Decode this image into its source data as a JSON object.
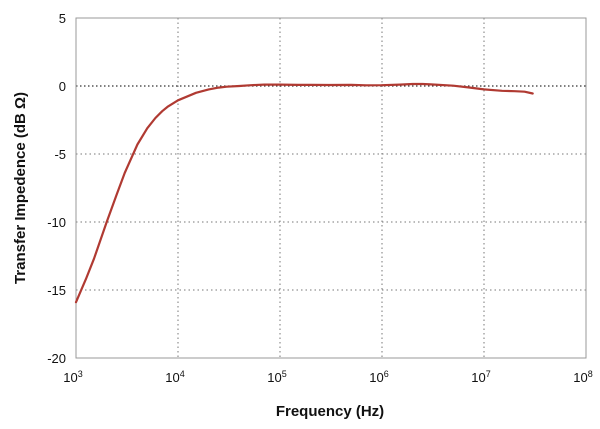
{
  "chart_data": {
    "type": "line",
    "title": "",
    "xlabel": "Frequency (Hz)",
    "ylabel": "Transfer Impedence (dB Ω)",
    "x_scale": "log",
    "xlim": [
      1000,
      100000000
    ],
    "ylim": [
      -20,
      5
    ],
    "x_ticks": [
      {
        "value": 1000,
        "base": "10",
        "exp": "3"
      },
      {
        "value": 10000,
        "base": "10",
        "exp": "4"
      },
      {
        "value": 100000,
        "base": "10",
        "exp": "5"
      },
      {
        "value": 1000000,
        "base": "10",
        "exp": "6"
      },
      {
        "value": 10000000,
        "base": "10",
        "exp": "7"
      },
      {
        "value": 100000000,
        "base": "10",
        "exp": "8"
      }
    ],
    "y_ticks": [
      5,
      0,
      -5,
      -10,
      -15,
      -20
    ],
    "grid": true,
    "grid_style": "dotted",
    "legend": "none",
    "series": [
      {
        "color": "#b03a32",
        "x": [
          1000,
          1250,
          1500,
          2000,
          2500,
          3000,
          4000,
          5000,
          6000,
          7000,
          8000,
          10000,
          12500,
          15000,
          20000,
          25000,
          30000,
          40000,
          50000,
          70000,
          100000,
          150000,
          200000,
          300000,
          500000,
          700000,
          1000000,
          1500000,
          2000000,
          2500000,
          3000000,
          5000000,
          7000000,
          10000000,
          15000000,
          20000000,
          25000000,
          30000000
        ],
        "y": [
          -15.9,
          -14.2,
          -12.7,
          -10.0,
          -8.0,
          -6.4,
          -4.3,
          -3.1,
          -2.35,
          -1.85,
          -1.5,
          -1.05,
          -0.75,
          -0.5,
          -0.25,
          -0.12,
          -0.05,
          0.0,
          0.05,
          0.1,
          0.1,
          0.08,
          0.08,
          0.07,
          0.08,
          0.05,
          0.06,
          0.1,
          0.15,
          0.15,
          0.12,
          0.02,
          -0.1,
          -0.25,
          -0.35,
          -0.38,
          -0.42,
          -0.55
        ]
      }
    ]
  }
}
